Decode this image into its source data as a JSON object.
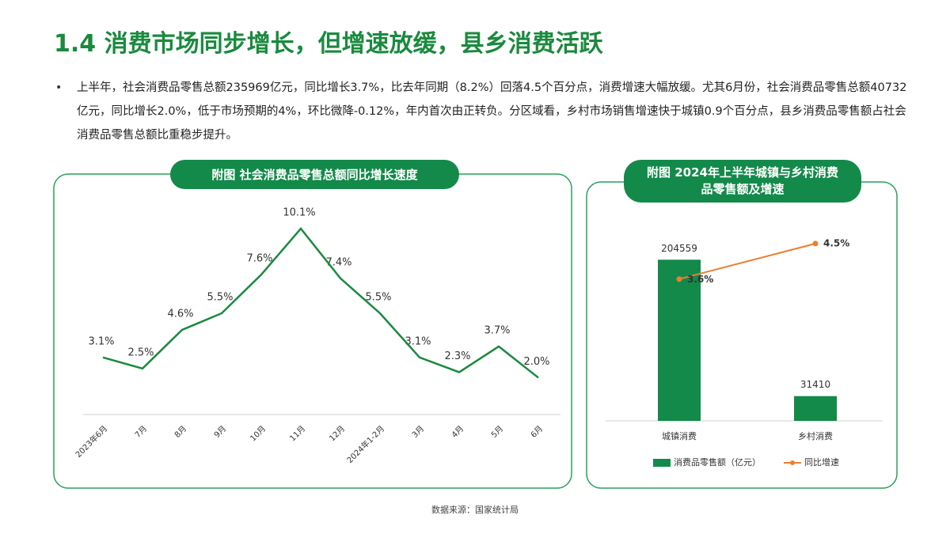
{
  "header": {
    "title": "1.4  消费市场同步增长，但增速放缓，县乡消费活跃"
  },
  "body": {
    "bullet": "上半年，社会消费品零售总额235969亿元，同比增长3.7%，比去年同期（8.2%）回落4.5个百分点，消费增速大幅放缓。尤其6月份，社会消费品零售总额40732亿元，同比增长2.0%，低于市场预期的4%，环比微降-0.12%，年内首次由正转负。分区域看，乡村市场销售增速快于城镇0.9个百分点，县乡消费品零售额占社会消费品零售总额比重稳步提升。"
  },
  "chart_data": [
    {
      "type": "line",
      "title": "附图 社会消费品零售总额同比增长速度",
      "categories": [
        "2023年6月",
        "7月",
        "8月",
        "9月",
        "10月",
        "11月",
        "12月",
        "2024年1-2月",
        "3月",
        "4月",
        "5月",
        "6月"
      ],
      "values": [
        3.1,
        2.5,
        4.6,
        5.5,
        7.6,
        10.1,
        7.4,
        5.5,
        3.1,
        2.3,
        3.7,
        2.0
      ],
      "value_labels": [
        "3.1%",
        "2.5%",
        "4.6%",
        "5.5%",
        "7.6%",
        "10.1%",
        "7.4%",
        "5.5%",
        "3.1%",
        "2.3%",
        "3.7%",
        "2.0%"
      ],
      "color": "#1a8a3e",
      "ylim": [
        0,
        11
      ]
    },
    {
      "type": "combo",
      "title": "附图 2024年上半年城镇与乡村消费品零售额及增速",
      "categories": [
        "城镇消费",
        "乡村消费"
      ],
      "series": [
        {
          "name": "消费品零售额（亿元）",
          "type": "bar",
          "color": "#138a4a",
          "values": [
            204559,
            31410
          ]
        },
        {
          "name": "同比增速",
          "type": "line",
          "axis": "y2",
          "color": "#ed7d31",
          "values": [
            3.6,
            4.5
          ],
          "value_labels": [
            "3.6%",
            "4.5%"
          ]
        }
      ],
      "ylim": [
        0,
        250000
      ],
      "y2lim": [
        0,
        5
      ],
      "legend": "bottom"
    }
  ],
  "source": "数据来源：国家统计局"
}
